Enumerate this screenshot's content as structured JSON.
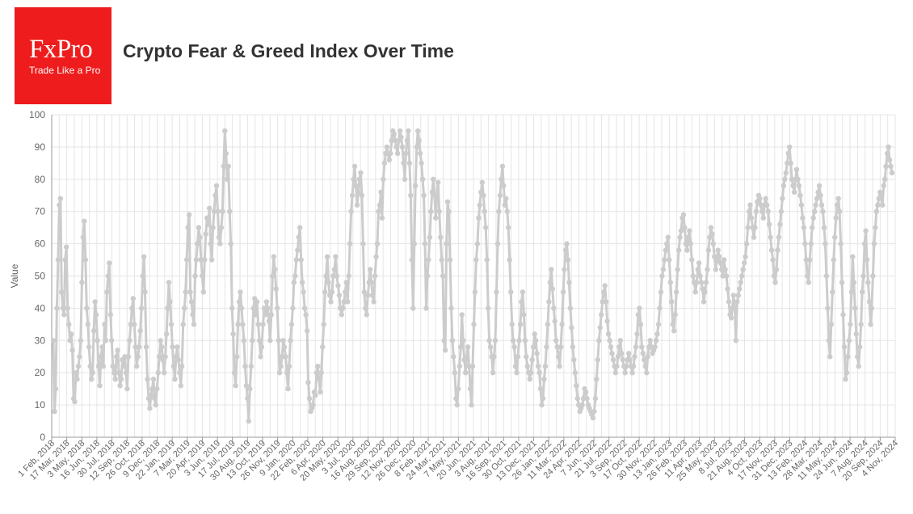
{
  "brand": {
    "name": "FxPro",
    "tagline": "Trade Like a Pro",
    "color": "#ee1c1c"
  },
  "header": {
    "title": "Crypto Fear & Greed Index Over Time"
  },
  "colors": {
    "series": "#cccccc",
    "grid": "#e5e5e5",
    "axis": "#999999",
    "text": "#666666"
  },
  "chart_data": {
    "type": "line",
    "ylabel": "Value",
    "xlabel": "",
    "ylim": [
      0,
      100
    ],
    "yticks": [
      0,
      10,
      20,
      30,
      40,
      50,
      60,
      70,
      80,
      90,
      100
    ],
    "grid": true,
    "legend": "none",
    "xticks": [
      "1 Feb, 2018",
      "17 Mar, 2018",
      "3 May, 2018",
      "16 Jun, 2018",
      "30 Jul, 2018",
      "12 Sep, 2018",
      "26 Oct, 2018",
      "9 Dec, 2018",
      "22 Jan, 2019",
      "7 Mar, 2019",
      "20 Apr, 2019",
      "3 Jun, 2019",
      "17 Jul, 2019",
      "30 Aug, 2019",
      "13 Oct, 2019",
      "26 Nov, 2019",
      "9 Jan, 2020",
      "22 Feb, 2020",
      "6 Apr, 2020",
      "20 May, 2020",
      "3 Jul, 2020",
      "16 Aug, 2020",
      "29 Sep, 2020",
      "12 Nov, 2020",
      "26 Dec, 2020",
      "8 Feb, 2021",
      "24 Mar, 2021",
      "7 May, 2021",
      "20 Jun, 2021",
      "3 Aug, 2021",
      "16 Sep, 2021",
      "30 Oct, 2021",
      "13 Dec, 2021",
      "26 Jan, 2022",
      "11 Mar, 2022",
      "24 Apr, 2022",
      "7 Jun, 2022",
      "21 Jul, 2022",
      "3 Sep, 2022",
      "17 Oct, 2022",
      "30 Nov, 2022",
      "13 Jan, 2023",
      "26 Feb, 2023",
      "11 Apr, 2023",
      "25 May, 2023",
      "8 Jul, 2023",
      "21 Aug, 2023",
      "4 Oct, 2023",
      "17 Nov, 2023",
      "31 Dec, 2023",
      "13 Feb, 2024",
      "28 Mar, 2024",
      "11 May, 2024",
      "24 Jun, 2024",
      "7 Aug, 2024",
      "20 Sep, 2024",
      "4 Nov, 2024"
    ],
    "series": [
      {
        "values": [
          30,
          8,
          15,
          40,
          55,
          72,
          74,
          45,
          40,
          38,
          55,
          59,
          40,
          35,
          30,
          32,
          27,
          12,
          11,
          20,
          18,
          22,
          25,
          30,
          48,
          62,
          67,
          55,
          40,
          35,
          28,
          22,
          18,
          20,
          33,
          42,
          38,
          30,
          22,
          16,
          25,
          28,
          22,
          35,
          30,
          45,
          50,
          54,
          38,
          30,
          22,
          20,
          18,
          25,
          27,
          20,
          16,
          18,
          24,
          22,
          25,
          20,
          15,
          25,
          30,
          35,
          40,
          43,
          35,
          28,
          22,
          25,
          28,
          33,
          40,
          50,
          56,
          45,
          28,
          18,
          12,
          9,
          13,
          15,
          18,
          12,
          10,
          15,
          20,
          25,
          30,
          28,
          24,
          20,
          25,
          32,
          40,
          48,
          42,
          35,
          28,
          22,
          18,
          25,
          28,
          24,
          20,
          16,
          22,
          35,
          40,
          45,
          55,
          65,
          69,
          45,
          42,
          38,
          35,
          50,
          55,
          60,
          65,
          62,
          55,
          50,
          45,
          55,
          63,
          68,
          66,
          71,
          60,
          55,
          65,
          70,
          75,
          78,
          70,
          62,
          60,
          65,
          70,
          84,
          95,
          88,
          80,
          84,
          70,
          60,
          40,
          32,
          20,
          16,
          25,
          35,
          42,
          45,
          40,
          35,
          30,
          22,
          16,
          12,
          5,
          15,
          22,
          30,
          40,
          43,
          38,
          42,
          35,
          30,
          25,
          28,
          35,
          40,
          38,
          42,
          40,
          36,
          30,
          38,
          50,
          56,
          52,
          46,
          40,
          30,
          20,
          22,
          25,
          30,
          28,
          25,
          20,
          15,
          22,
          30,
          35,
          40,
          48,
          50,
          55,
          58,
          62,
          65,
          55,
          48,
          45,
          40,
          38,
          33,
          17,
          12,
          8,
          9,
          10,
          14,
          13,
          20,
          22,
          18,
          14,
          20,
          28,
          35,
          45,
          50,
          56,
          48,
          44,
          42,
          45,
          50,
          52,
          56,
          50,
          47,
          44,
          40,
          38,
          40,
          42,
          45,
          48,
          42,
          50,
          60,
          70,
          75,
          80,
          84,
          78,
          72,
          76,
          80,
          82,
          75,
          60,
          45,
          40,
          38,
          44,
          48,
          52,
          48,
          44,
          42,
          50,
          56,
          60,
          70,
          72,
          76,
          68,
          80,
          85,
          88,
          90,
          88,
          86,
          88,
          92,
          95,
          94,
          92,
          90,
          88,
          92,
          95,
          93,
          90,
          85,
          80,
          88,
          92,
          95,
          85,
          75,
          55,
          40,
          60,
          78,
          90,
          95,
          92,
          88,
          85,
          80,
          75,
          60,
          40,
          50,
          55,
          62,
          70,
          76,
          80,
          75,
          68,
          75,
          79,
          70,
          62,
          55,
          50,
          30,
          27,
          60,
          73,
          70,
          55,
          40,
          30,
          25,
          20,
          12,
          10,
          15,
          22,
          28,
          38,
          30,
          24,
          20,
          25,
          28,
          22,
          15,
          10,
          22,
          35,
          45,
          55,
          60,
          68,
          72,
          76,
          79,
          75,
          70,
          65,
          55,
          40,
          30,
          28,
          25,
          20,
          25,
          30,
          45,
          60,
          70,
          75,
          80,
          84,
          78,
          72,
          74,
          70,
          65,
          55,
          45,
          35,
          30,
          28,
          22,
          20,
          25,
          30,
          35,
          42,
          45,
          38,
          30,
          25,
          22,
          20,
          18,
          20,
          24,
          28,
          32,
          30,
          26,
          22,
          20,
          15,
          10,
          12,
          18,
          22,
          28,
          35,
          42,
          48,
          52,
          46,
          40,
          36,
          30,
          28,
          25,
          22,
          28,
          35,
          45,
          52,
          58,
          60,
          55,
          48,
          40,
          34,
          28,
          24,
          20,
          16,
          12,
          10,
          8,
          9,
          10,
          12,
          15,
          14,
          12,
          10,
          9,
          8,
          7,
          6,
          8,
          12,
          18,
          24,
          30,
          34,
          38,
          42,
          45,
          47,
          42,
          36,
          32,
          30,
          28,
          26,
          24,
          22,
          20,
          22,
          25,
          28,
          30,
          26,
          24,
          22,
          20,
          22,
          24,
          26,
          24,
          22,
          20,
          22,
          25,
          28,
          32,
          38,
          40,
          35,
          28,
          26,
          24,
          22,
          20,
          25,
          28,
          30,
          28,
          26,
          27,
          28,
          30,
          32,
          35,
          40,
          45,
          50,
          52,
          55,
          58,
          60,
          62,
          55,
          48,
          42,
          35,
          33,
          38,
          45,
          52,
          58,
          62,
          64,
          68,
          69,
          65,
          60,
          58,
          62,
          64,
          60,
          55,
          50,
          48,
          45,
          48,
          52,
          54,
          50,
          48,
          46,
          42,
          45,
          48,
          52,
          58,
          62,
          65,
          63,
          60,
          56,
          52,
          55,
          58,
          56,
          54,
          52,
          50,
          55,
          52,
          50,
          46,
          42,
          38,
          37,
          40,
          44,
          40,
          30,
          42,
          44,
          46,
          48,
          50,
          52,
          54,
          56,
          60,
          65,
          70,
          72,
          68,
          65,
          62,
          65,
          70,
          73,
          75,
          74,
          72,
          70,
          68,
          72,
          74,
          72,
          70,
          66,
          62,
          58,
          55,
          50,
          48,
          52,
          58,
          62,
          66,
          70,
          74,
          78,
          80,
          82,
          85,
          88,
          90,
          85,
          80,
          78,
          76,
          80,
          83,
          80,
          78,
          75,
          72,
          68,
          65,
          60,
          55,
          50,
          48,
          55,
          60,
          65,
          68,
          70,
          72,
          74,
          76,
          78,
          75,
          72,
          70,
          65,
          60,
          50,
          40,
          30,
          25,
          35,
          45,
          55,
          62,
          68,
          72,
          74,
          70,
          60,
          48,
          38,
          28,
          18,
          20,
          25,
          30,
          35,
          45,
          56,
          48,
          40,
          32,
          25,
          22,
          28,
          35,
          45,
          50,
          60,
          64,
          55,
          48,
          42,
          35,
          40,
          50,
          60,
          65,
          70,
          72,
          74,
          76,
          75,
          72,
          78,
          80,
          84,
          88,
          90,
          86,
          84,
          82
        ]
      }
    ]
  }
}
